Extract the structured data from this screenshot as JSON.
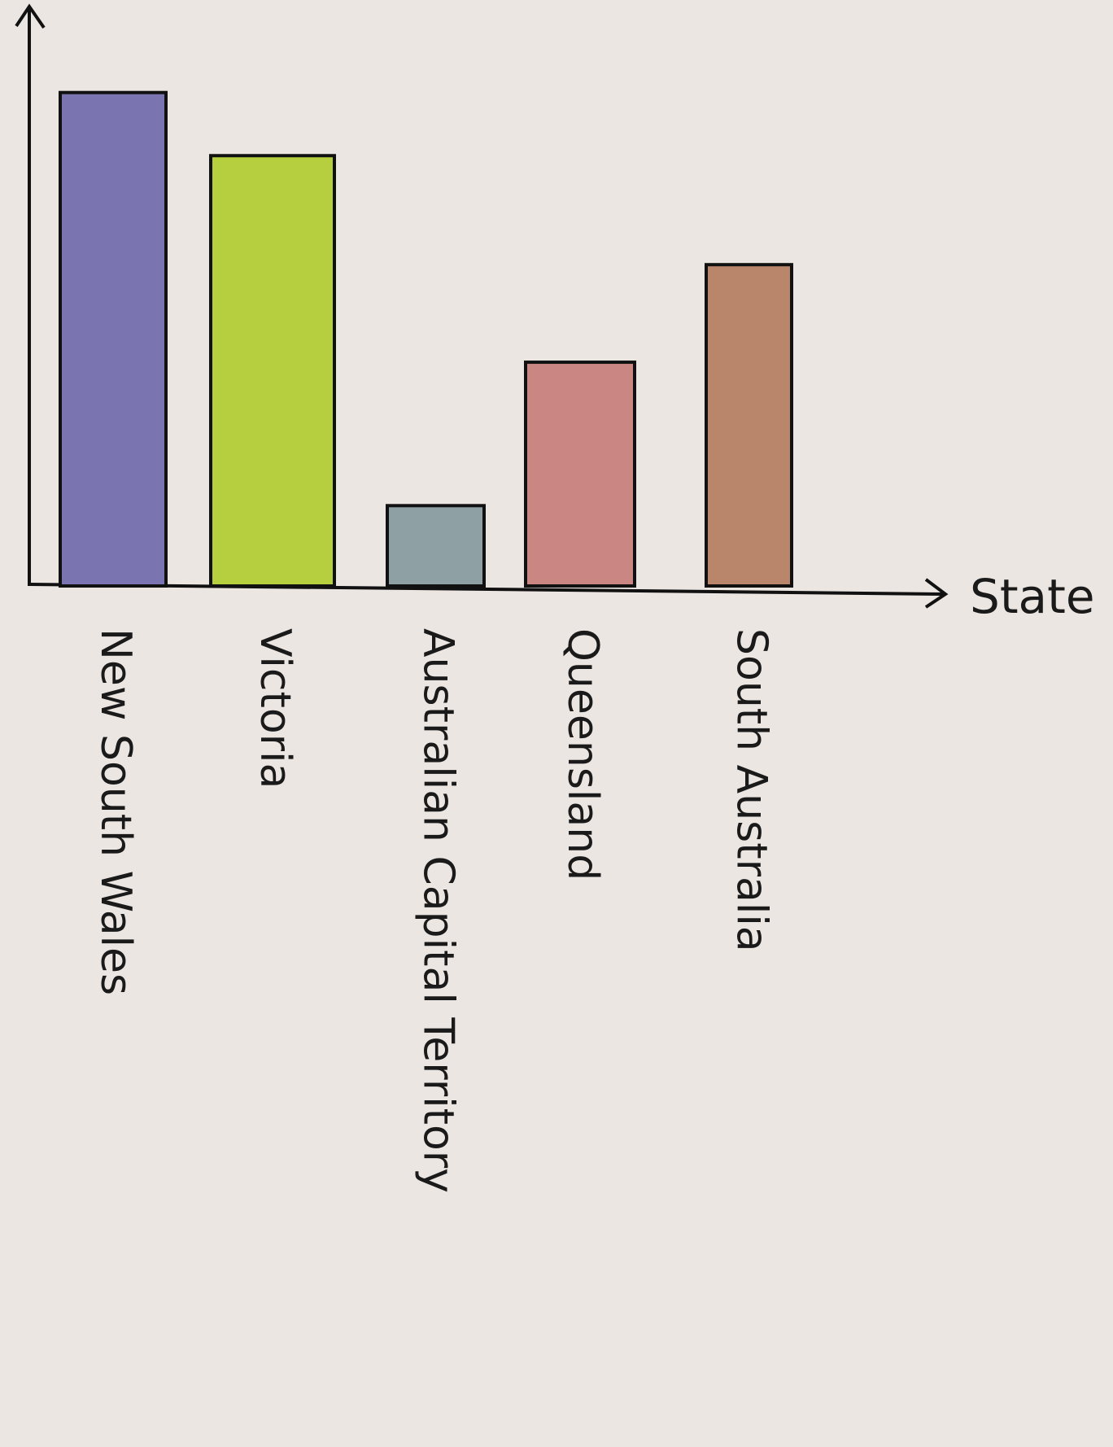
{
  "chart_data": {
    "type": "bar",
    "x_label": "State",
    "categories": [
      "New South Wales",
      "Victoria",
      "Australian Capital Territory",
      "Queensland",
      "South Australia"
    ],
    "values": [
      86,
      75,
      14,
      39,
      56
    ],
    "colors": [
      "#7a74b0",
      "#b5cf3f",
      "#8ea0a4",
      "#c98682",
      "#b9866b"
    ],
    "ylim": [
      0,
      100
    ],
    "grid": false
  }
}
